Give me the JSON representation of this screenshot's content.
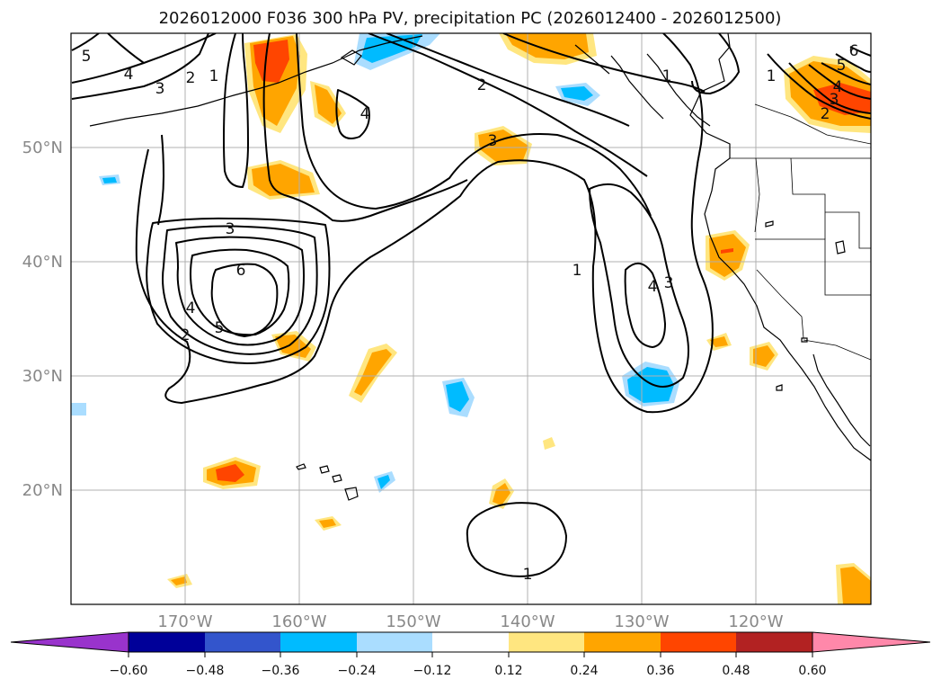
{
  "title": "2026012000 F036 300 hPa PV, precipitation PC (2026012400 - 2026012500)",
  "map": {
    "lon_range": [
      -180,
      -110
    ],
    "lat_range": [
      10,
      60
    ],
    "lat_labels": [
      "20°N",
      "30°N",
      "40°N",
      "50°N"
    ],
    "lat_values": [
      20,
      30,
      40,
      50
    ],
    "lon_labels": [
      "170°W",
      "160°W",
      "150°W",
      "140°W",
      "130°W",
      "120°W"
    ],
    "lon_values": [
      -170,
      -160,
      -150,
      -140,
      -130,
      -120
    ]
  },
  "pv_contour_labels": [
    "5",
    "4",
    "3",
    "2",
    "1",
    "2",
    "4",
    "1",
    "6",
    "5",
    "4",
    "3",
    "2",
    "3",
    "6",
    "4",
    "5",
    "2",
    "1",
    "4",
    "3",
    "1"
  ],
  "colorbar": {
    "ticks": [
      "−0.60",
      "−0.48",
      "−0.36",
      "−0.24",
      "−0.12",
      "0.12",
      "0.24",
      "0.36",
      "0.48",
      "0.60"
    ],
    "colors": {
      "below": "#9933cc",
      "bins": [
        "#000099",
        "#3355cc",
        "#00bbff",
        "#aaddff",
        "#ffffff",
        "#ffe680",
        "#ffa500",
        "#ff4500",
        "#b22222"
      ],
      "above": "#ff88aa"
    }
  }
}
